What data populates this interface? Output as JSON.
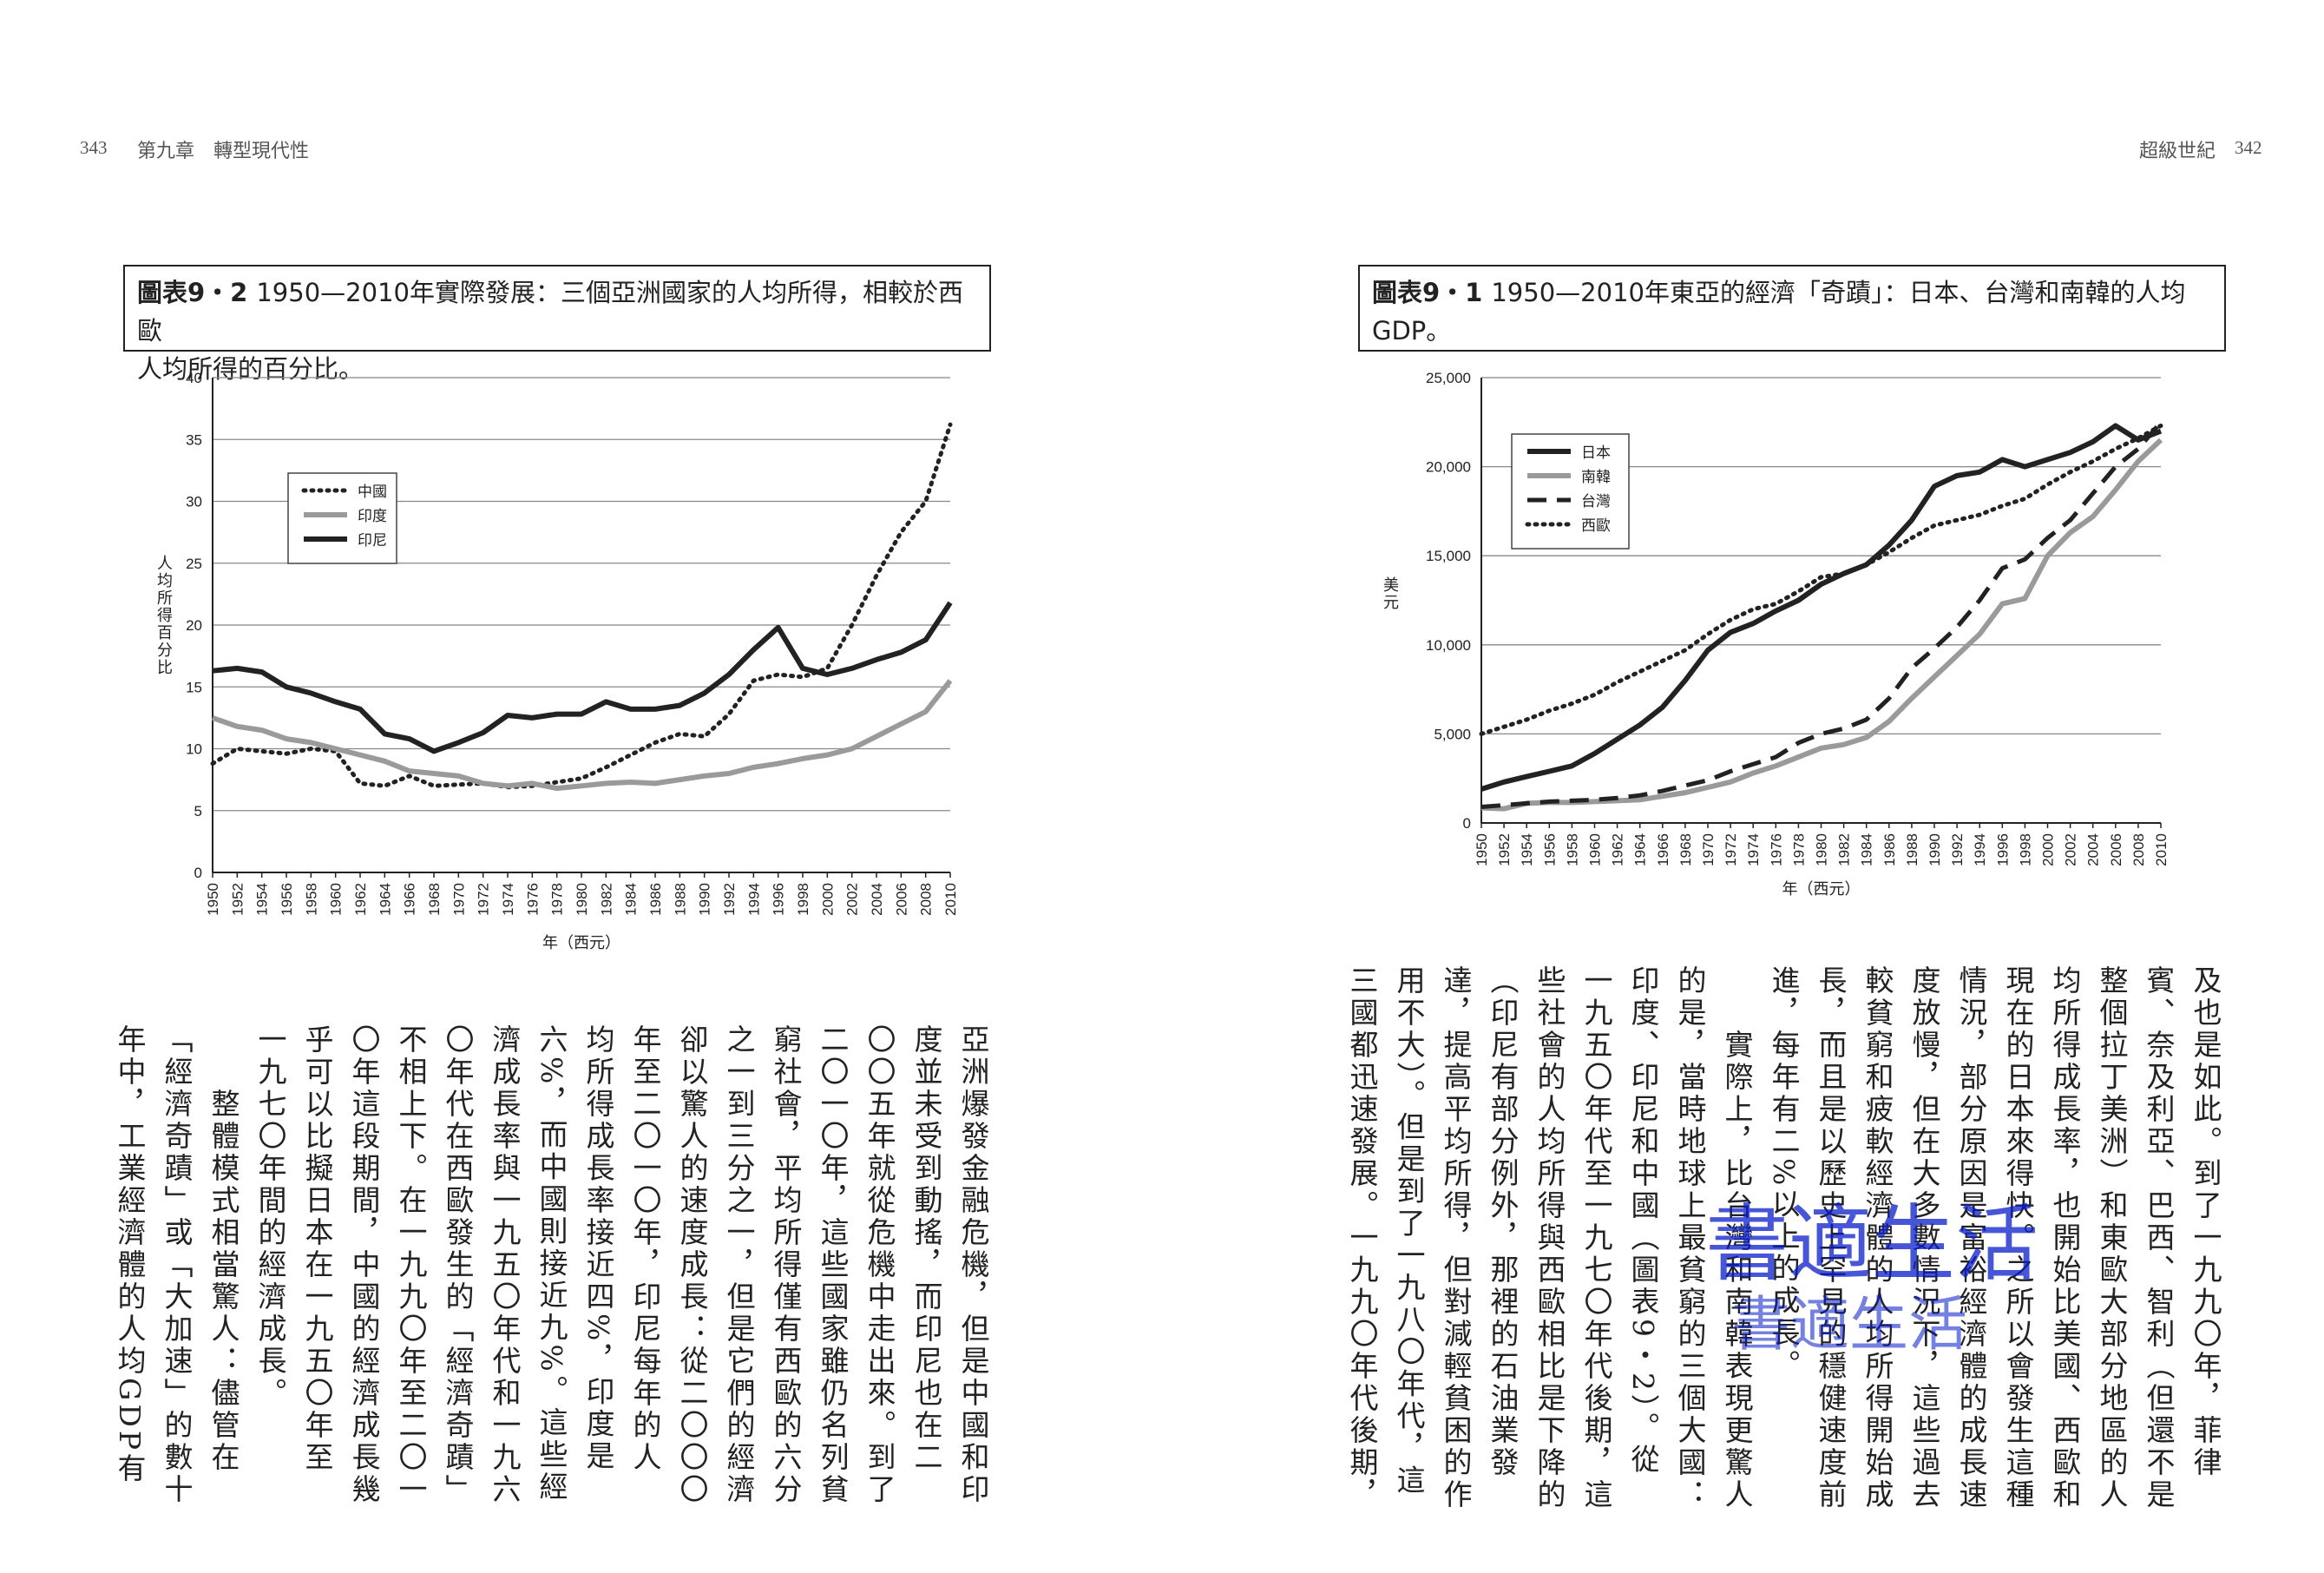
{
  "header": {
    "left_page_number": "343",
    "left_title": "第九章　轉型現代性",
    "right_title": "超級世紀",
    "right_page_number": "342"
  },
  "figure_left": {
    "label": "圖表9・2",
    "caption_line1": "1950—2010年實際發展：三個亞洲國家的人均所得，相較於西歐",
    "caption_line2": "人均所得的百分比。"
  },
  "figure_right": {
    "label": "圖表9・1",
    "caption_line1": "1950—2010年東亞的經濟「奇蹟」：日本、台灣和南韓的人均",
    "caption_line2": "GDP。"
  },
  "chart_data": [
    {
      "type": "line",
      "title": "",
      "ylabel": "人均所得百分比",
      "xlabel": "年（西元）",
      "ylim": [
        0,
        40
      ],
      "yticks": [
        "0",
        "5",
        "10",
        "15",
        "20",
        "25",
        "30",
        "35",
        "40"
      ],
      "grid": true,
      "legend_position": "upper-left",
      "x": [
        1950,
        1952,
        1954,
        1956,
        1958,
        1960,
        1962,
        1964,
        1966,
        1968,
        1970,
        1972,
        1974,
        1976,
        1978,
        1980,
        1982,
        1984,
        1986,
        1988,
        1990,
        1992,
        1994,
        1996,
        1998,
        2000,
        2002,
        2004,
        2006,
        2008,
        2010
      ],
      "series": [
        {
          "name": "中國",
          "style": "dotted",
          "values": [
            8.8,
            10.0,
            9.8,
            9.6,
            10.0,
            9.8,
            7.2,
            7.0,
            7.8,
            7.0,
            7.1,
            7.2,
            6.9,
            7.0,
            7.3,
            7.6,
            8.5,
            9.5,
            10.5,
            11.2,
            11.0,
            12.8,
            15.5,
            16.0,
            15.8,
            16.5,
            20.0,
            24.0,
            27.5,
            30.0,
            36.2
          ]
        },
        {
          "name": "印度",
          "style": "gray",
          "values": [
            12.5,
            11.8,
            11.5,
            10.8,
            10.5,
            10.0,
            9.5,
            9.0,
            8.2,
            8.0,
            7.8,
            7.2,
            7.0,
            7.2,
            6.8,
            7.0,
            7.2,
            7.3,
            7.2,
            7.5,
            7.8,
            8.0,
            8.5,
            8.8,
            9.2,
            9.5,
            10.0,
            11.0,
            12.0,
            13.0,
            15.5
          ]
        },
        {
          "name": "印尼",
          "style": "solid",
          "values": [
            16.3,
            16.5,
            16.2,
            15.0,
            14.5,
            13.8,
            13.2,
            11.2,
            10.8,
            9.8,
            10.5,
            11.3,
            12.7,
            12.5,
            12.8,
            12.8,
            13.8,
            13.2,
            13.2,
            13.5,
            14.5,
            16.0,
            18.0,
            19.8,
            16.5,
            16.0,
            16.5,
            17.2,
            17.8,
            18.8,
            21.8
          ]
        }
      ]
    },
    {
      "type": "line",
      "title": "",
      "ylabel": "美元",
      "xlabel": "年（西元）",
      "ylim": [
        0,
        25000
      ],
      "yticks": [
        "0",
        "5,000",
        "10,000",
        "15,000",
        "20,000",
        "25,000"
      ],
      "grid": true,
      "legend_position": "upper-left",
      "x": [
        1950,
        1952,
        1954,
        1956,
        1958,
        1960,
        1962,
        1964,
        1966,
        1968,
        1970,
        1972,
        1974,
        1976,
        1978,
        1980,
        1982,
        1984,
        1986,
        1988,
        1990,
        1992,
        1994,
        1996,
        1998,
        2000,
        2002,
        2004,
        2006,
        2008,
        2010
      ],
      "series": [
        {
          "name": "日本",
          "style": "solid",
          "values": [
            1900,
            2300,
            2600,
            2900,
            3200,
            3900,
            4700,
            5500,
            6500,
            8000,
            9700,
            10700,
            11200,
            11900,
            12500,
            13400,
            14000,
            14500,
            15600,
            17000,
            18900,
            19500,
            19700,
            20400,
            20000,
            20400,
            20800,
            21400,
            22300,
            21500,
            22000
          ]
        },
        {
          "name": "南韓",
          "style": "gray",
          "values": [
            850,
            800,
            1100,
            1150,
            1150,
            1200,
            1250,
            1300,
            1500,
            1700,
            2000,
            2300,
            2800,
            3200,
            3700,
            4200,
            4400,
            4800,
            5700,
            7000,
            8200,
            9400,
            10600,
            12300,
            12600,
            15000,
            16300,
            17200,
            18700,
            20300,
            21500
          ]
        },
        {
          "name": "台灣",
          "style": "dashed",
          "values": [
            900,
            1000,
            1100,
            1200,
            1250,
            1300,
            1400,
            1550,
            1800,
            2100,
            2400,
            2900,
            3300,
            3700,
            4500,
            5000,
            5300,
            5800,
            7000,
            8700,
            9800,
            11000,
            12500,
            14300,
            14800,
            16000,
            17000,
            18500,
            20000,
            21000,
            22500
          ]
        },
        {
          "name": "西歐",
          "style": "dotted",
          "values": [
            5000,
            5400,
            5800,
            6300,
            6700,
            7200,
            7900,
            8500,
            9100,
            9700,
            10600,
            11400,
            12000,
            12300,
            13000,
            13800,
            14000,
            14500,
            15200,
            16000,
            16700,
            17000,
            17300,
            17800,
            18200,
            19000,
            19700,
            20300,
            21000,
            21600,
            22300
          ]
        }
      ]
    }
  ],
  "left_text_columns": [
    "亞洲爆發金融危機，但是中國和印",
    "度並未受到動搖，而印尼也在二",
    "〇〇五年就從危機中走出來。到了",
    "二〇一〇年，這些國家雖仍名列貧",
    "窮社會，平均所得僅有西歐的六分",
    "之一到三分之一，但是它們的經濟",
    "卻以驚人的速度成長：從二〇〇〇",
    "年至二〇一〇年，印尼每年的人",
    "均所得成長率接近四%，印度是",
    "六%，而中國則接近九%。這些經",
    "濟成長率與一九五〇年代和一九六",
    "〇年代在西歐發生的「經濟奇蹟」",
    "不相上下。在一九九〇年至二〇一",
    "〇年這段期間，中國的經濟成長幾",
    "乎可以比擬日本在一九五〇年至",
    "一九七〇年間的經濟成長。",
    "　　整體模式相當驚人：儘管在",
    "「經濟奇蹟」或「大加速」的數十",
    "年中，工業經濟體的人均GDP有"
  ],
  "right_text_columns": [
    "及也是如此。到了一九九〇年，菲律",
    "賓、奈及利亞、巴西、智利（但還不是",
    "整個拉丁美洲）和東歐大部分地區的人",
    "均所得成長率，也開始比美國、西歐和",
    "現在的日本來得快。之所以會發生這種",
    "情況，部分原因是富裕經濟體的成長速",
    "度放慢，但在大多數情況下，這些過去",
    "較貧窮和疲軟經濟體的人均所得開始成",
    "長，而且是以歷史上罕見的穩健速度前",
    "進，每年有二%以上的成長。",
    "　　實際上，比台灣和南韓表現更驚人",
    "的是，當時地球上最貧窮的三個大國：",
    "印度、印尼和中國（圖表9・2）。從",
    "一九五〇年代至一九七〇年代後期，這",
    "些社會的人均所得與西歐相比是下降的",
    "（印尼有部分例外，那裡的石油業發",
    "達，提高平均所得，但對減輕貧困的作",
    "用不大）。但是到了一九八〇年代，這",
    "三國都迅速發展。一九九〇年代後期，"
  ],
  "watermark": {
    "large": "書適生活",
    "small": "書適生活"
  }
}
